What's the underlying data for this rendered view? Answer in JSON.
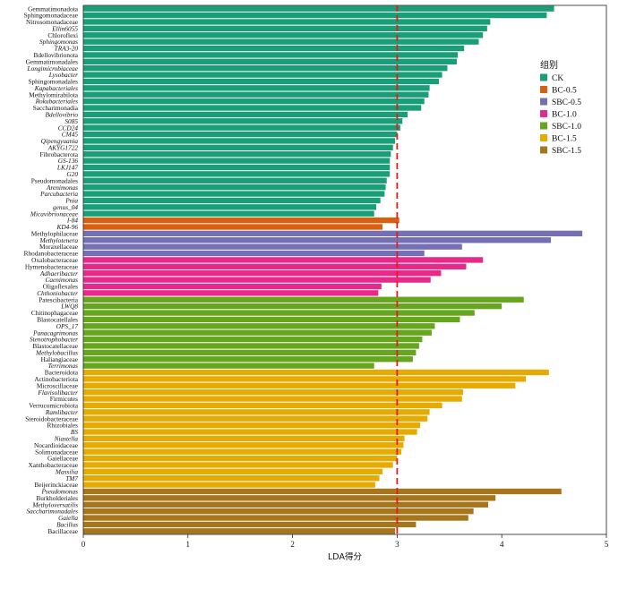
{
  "chart_data": {
    "type": "bar",
    "orientation": "horizontal",
    "xlabel": "LDA得分",
    "xlim": [
      0,
      5
    ],
    "xticks": [
      "0",
      "1",
      "2",
      "3",
      "4",
      "5"
    ],
    "threshold": 3,
    "grid": false,
    "legend": {
      "title": "组别",
      "placement": "right",
      "entries": [
        {
          "name": "CK",
          "color": "#1a9e77"
        },
        {
          "name": "BC-0.5",
          "color": "#d95f0e"
        },
        {
          "name": "SBC-0.5",
          "color": "#7570b3"
        },
        {
          "name": "BC-1.0",
          "color": "#e7298a"
        },
        {
          "name": "SBC-1.0",
          "color": "#66a61e"
        },
        {
          "name": "BC-1.5",
          "color": "#e6ab02"
        },
        {
          "name": "SBC-1.5",
          "color": "#a6761d"
        }
      ]
    },
    "series": [
      {
        "group": "CK",
        "color": "#1a9e77",
        "items": [
          {
            "label": "Gemmatimonadota",
            "value": 4.5,
            "italic": false
          },
          {
            "label": "Sphingomonadaceae",
            "value": 4.43,
            "italic": false
          },
          {
            "label": "Nitrosomonadaceae",
            "value": 3.89,
            "italic": false
          },
          {
            "label": "Ellin6055",
            "value": 3.86,
            "italic": true
          },
          {
            "label": "Chloroflexi",
            "value": 3.82,
            "italic": false
          },
          {
            "label": "Sphingomonas",
            "value": 3.78,
            "italic": true
          },
          {
            "label": "TRA3-20",
            "value": 3.64,
            "italic": true
          },
          {
            "label": "Bdellovibrionota",
            "value": 3.58,
            "italic": false
          },
          {
            "label": "Gemmatimonadales",
            "value": 3.57,
            "italic": false
          },
          {
            "label": "Longimicrobiaceae",
            "value": 3.48,
            "italic": true
          },
          {
            "label": "Lysobacter",
            "value": 3.43,
            "italic": true
          },
          {
            "label": "Sphingomonadales",
            "value": 3.4,
            "italic": false
          },
          {
            "label": "Kapabacteriales",
            "value": 3.31,
            "italic": true
          },
          {
            "label": "Methylomirabilota",
            "value": 3.3,
            "italic": false
          },
          {
            "label": "Rokubacteriales",
            "value": 3.26,
            "italic": true
          },
          {
            "label": "Saccharimonadia",
            "value": 3.23,
            "italic": false
          },
          {
            "label": "Bdellovibrio",
            "value": 3.1,
            "italic": true
          },
          {
            "label": "S085",
            "value": 3.05,
            "italic": true
          },
          {
            "label": "CCD24",
            "value": 3.03,
            "italic": true
          },
          {
            "label": "CM45",
            "value": 3.0,
            "italic": true
          },
          {
            "label": "Qipengyuania",
            "value": 2.98,
            "italic": true
          },
          {
            "label": "AKYG1722",
            "value": 2.96,
            "italic": true
          },
          {
            "label": "Fibrobacterota",
            "value": 2.94,
            "italic": false
          },
          {
            "label": "GS-136",
            "value": 2.93,
            "italic": true
          },
          {
            "label": "LKJ147",
            "value": 2.93,
            "italic": true
          },
          {
            "label": "G20",
            "value": 2.93,
            "italic": true
          },
          {
            "label": "Pseudomonadales",
            "value": 2.9,
            "italic": false
          },
          {
            "label": "Arenimonas",
            "value": 2.89,
            "italic": true
          },
          {
            "label": "Parcubacteria",
            "value": 2.88,
            "italic": true
          },
          {
            "label": "Pnia",
            "value": 2.84,
            "italic": true
          },
          {
            "label": "genus_04",
            "value": 2.8,
            "italic": true
          },
          {
            "label": "Micavibrionaceae",
            "value": 2.78,
            "italic": true
          }
        ]
      },
      {
        "group": "BC-0.5",
        "color": "#d95f0e",
        "items": [
          {
            "label": "I-84",
            "value": 3.02,
            "italic": true
          },
          {
            "label": "KD4-96",
            "value": 2.86,
            "italic": true
          }
        ]
      },
      {
        "group": "SBC-0.5",
        "color": "#7570b3",
        "items": [
          {
            "label": "Methylophilaceae",
            "value": 4.77,
            "italic": false
          },
          {
            "label": "Methylotenera",
            "value": 4.47,
            "italic": true
          },
          {
            "label": "Moraxellaceae",
            "value": 3.62,
            "italic": false
          },
          {
            "label": "Rhodanobacteraceae",
            "value": 3.26,
            "italic": false
          }
        ]
      },
      {
        "group": "BC-1.0",
        "color": "#e7298a",
        "items": [
          {
            "label": "Oxalobacteraceae",
            "value": 3.82,
            "italic": false
          },
          {
            "label": "Hymenobacteraceae",
            "value": 3.66,
            "italic": false
          },
          {
            "label": "Adhaeribacter",
            "value": 3.42,
            "italic": true
          },
          {
            "label": "Caenimonas",
            "value": 3.32,
            "italic": true
          },
          {
            "label": "Oligoflexales",
            "value": 2.85,
            "italic": false
          },
          {
            "label": "Chthoniobacter",
            "value": 2.82,
            "italic": true
          }
        ]
      },
      {
        "group": "SBC-1.0",
        "color": "#66a61e",
        "items": [
          {
            "label": "Patescibacteria",
            "value": 4.21,
            "italic": false
          },
          {
            "label": "LWQ8",
            "value": 4.0,
            "italic": true
          },
          {
            "label": "Chitinophagaceae",
            "value": 3.74,
            "italic": false
          },
          {
            "label": "Blastocatellales",
            "value": 3.6,
            "italic": false
          },
          {
            "label": "OPS_17",
            "value": 3.36,
            "italic": true
          },
          {
            "label": "Panacagrimonas",
            "value": 3.33,
            "italic": true
          },
          {
            "label": "Stenotrophobacter",
            "value": 3.24,
            "italic": true
          },
          {
            "label": "Blastocatellaceae",
            "value": 3.21,
            "italic": false
          },
          {
            "label": "Methylobacillus",
            "value": 3.18,
            "italic": true
          },
          {
            "label": "Haliangiaceae",
            "value": 3.15,
            "italic": false
          },
          {
            "label": "Terrimonas",
            "value": 2.78,
            "italic": true
          }
        ]
      },
      {
        "group": "BC-1.5",
        "color": "#e6ab02",
        "items": [
          {
            "label": "Bacteroidota",
            "value": 4.45,
            "italic": false
          },
          {
            "label": "Actinobacteriota",
            "value": 4.23,
            "italic": false
          },
          {
            "label": "Microscillaceae",
            "value": 4.13,
            "italic": false
          },
          {
            "label": "Flavisolibacter",
            "value": 3.63,
            "italic": true
          },
          {
            "label": "Firmicutes",
            "value": 3.62,
            "italic": false
          },
          {
            "label": "Verrucomicrobiota",
            "value": 3.43,
            "italic": false
          },
          {
            "label": "Ramlibacter",
            "value": 3.31,
            "italic": true
          },
          {
            "label": "Steroidobacteraceae",
            "value": 3.29,
            "italic": false
          },
          {
            "label": "Rhizobiales",
            "value": 3.22,
            "italic": false
          },
          {
            "label": "BS",
            "value": 3.19,
            "italic": true
          },
          {
            "label": "Niastella",
            "value": 3.07,
            "italic": true
          },
          {
            "label": "Nocardioidaceae",
            "value": 3.06,
            "italic": false
          },
          {
            "label": "Solimonadaceae",
            "value": 3.04,
            "italic": false
          },
          {
            "label": "Gaiellaceae",
            "value": 3.0,
            "italic": false
          },
          {
            "label": "Xanthobacteraceae",
            "value": 2.96,
            "italic": false
          },
          {
            "label": "Massilia",
            "value": 2.86,
            "italic": true
          },
          {
            "label": "TM7",
            "value": 2.83,
            "italic": true
          },
          {
            "label": "Beijerinckiaceae",
            "value": 2.79,
            "italic": false
          }
        ]
      },
      {
        "group": "SBC-1.5",
        "color": "#a6761d",
        "items": [
          {
            "label": "Pseudomonas",
            "value": 4.57,
            "italic": true
          },
          {
            "label": "Burkholderiales",
            "value": 3.94,
            "italic": false
          },
          {
            "label": "Methyloversatilis",
            "value": 3.87,
            "italic": true
          },
          {
            "label": "Saccharimonadales",
            "value": 3.73,
            "italic": true
          },
          {
            "label": "Gaiella",
            "value": 3.68,
            "italic": true
          },
          {
            "label": "Bacillus",
            "value": 3.18,
            "italic": true
          },
          {
            "label": "Bacillaceae",
            "value": 2.98,
            "italic": false
          }
        ]
      }
    ]
  }
}
